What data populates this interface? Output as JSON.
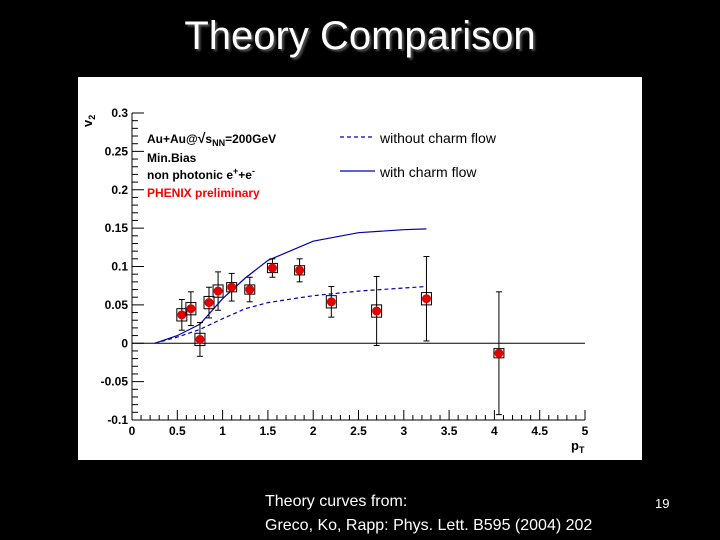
{
  "slide": {
    "title": "Theory Comparison",
    "citation_line1": "Theory curves from:",
    "citation_line2": "Greco, Ko, Rapp: Phys. Lett. B595 (2004) 202",
    "page_number": "19"
  },
  "chart_data": {
    "type": "scatter",
    "title": "",
    "xlabel": "pT",
    "ylabel": "v2",
    "xlim": [
      0,
      5
    ],
    "ylim": [
      -0.1,
      0.3
    ],
    "grid": false,
    "legend_position": "top-right",
    "x_ticks": [
      "0",
      "0.5",
      "1",
      "1.5",
      "2",
      "2.5",
      "3",
      "3.5",
      "4",
      "4.5",
      "5"
    ],
    "y_ticks": [
      "-0.1",
      "-0.05",
      "0",
      "0.05",
      "0.1",
      "0.15",
      "0.2",
      "0.25",
      "0.3"
    ],
    "annotations": {
      "system_prefix": "Au+Au@",
      "sqrt_s_label": "s",
      "sqrt_s_subscript": "NN",
      "energy": "=200GeV",
      "centrality": "Min.Bias",
      "electrons_label": "non photonic e",
      "electrons_sup1": "+",
      "electrons_plus": "+e",
      "electrons_sup2": "-",
      "collaboration": "PHENIX preliminary"
    },
    "colors": {
      "data_points": "#e00000",
      "theory_curves": "#0000b0",
      "collaboration_text": "#ff0000"
    },
    "series": [
      {
        "name": "without charm flow",
        "style": "dashed",
        "x": [
          0.25,
          0.5,
          0.75,
          1.0,
          1.25,
          1.5,
          2.0,
          2.5,
          3.0,
          3.25
        ],
        "y": [
          0.0,
          0.008,
          0.018,
          0.032,
          0.045,
          0.053,
          0.062,
          0.068,
          0.072,
          0.074
        ]
      },
      {
        "name": "with charm flow",
        "style": "solid",
        "x": [
          0.25,
          0.5,
          0.75,
          1.0,
          1.25,
          1.5,
          2.0,
          2.5,
          3.0,
          3.25
        ],
        "y": [
          0.0,
          0.01,
          0.025,
          0.058,
          0.085,
          0.108,
          0.133,
          0.144,
          0.148,
          0.149
        ]
      },
      {
        "name": "PHENIX preliminary",
        "style": "points",
        "x": [
          0.55,
          0.65,
          0.75,
          0.85,
          0.95,
          1.1,
          1.3,
          1.55,
          1.85,
          2.2,
          2.7,
          3.25,
          4.05
        ],
        "y": [
          0.037,
          0.045,
          0.005,
          0.053,
          0.068,
          0.073,
          0.07,
          0.098,
          0.095,
          0.054,
          0.042,
          0.058,
          -0.013
        ],
        "stat_err": [
          0.02,
          0.022,
          0.022,
          0.02,
          0.025,
          0.018,
          0.016,
          0.012,
          0.015,
          0.02,
          0.045,
          0.055,
          0.08
        ],
        "sys_err": [
          0.008,
          0.008,
          0.008,
          0.008,
          0.008,
          0.006,
          0.006,
          0.006,
          0.006,
          0.008,
          0.008,
          0.008,
          0.006
        ]
      }
    ]
  }
}
